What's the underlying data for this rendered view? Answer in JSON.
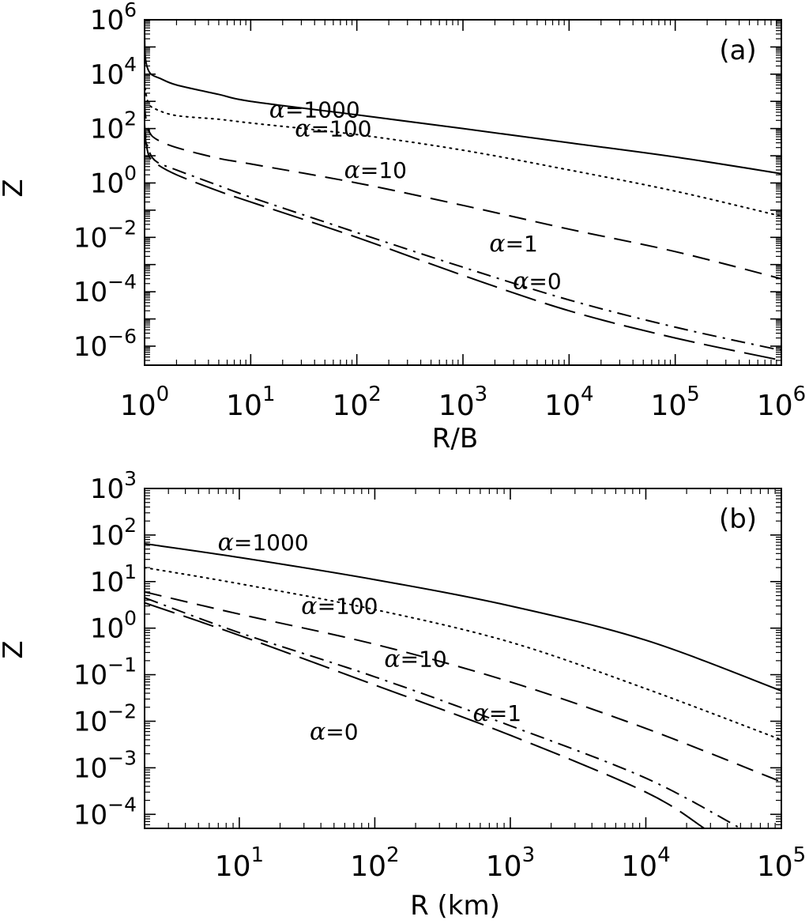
{
  "chart_data": [
    {
      "type": "line",
      "panel_label": "(a)",
      "xlabel": "R/B",
      "ylabel": "Z",
      "x_scale": "log",
      "y_scale": "log",
      "xlim": [
        1,
        1000000
      ],
      "ylim": [
        2e-07,
        1000000
      ],
      "x_ticks": [
        {
          "value": 1,
          "base": "10",
          "exp": "0"
        },
        {
          "value": 10,
          "base": "10",
          "exp": "1"
        },
        {
          "value": 100,
          "base": "10",
          "exp": "2"
        },
        {
          "value": 1000,
          "base": "10",
          "exp": "3"
        },
        {
          "value": 10000,
          "base": "10",
          "exp": "4"
        },
        {
          "value": 100000,
          "base": "10",
          "exp": "5"
        },
        {
          "value": 1000000,
          "base": "10",
          "exp": "6"
        }
      ],
      "y_ticks": [
        {
          "value": 1e-06,
          "base": "10",
          "exp": "−6"
        },
        {
          "value": 0.0001,
          "base": "10",
          "exp": "−4"
        },
        {
          "value": 0.01,
          "base": "10",
          "exp": "−2"
        },
        {
          "value": 1,
          "base": "10",
          "exp": "0"
        },
        {
          "value": 100,
          "base": "10",
          "exp": "2"
        },
        {
          "value": 10000,
          "base": "10",
          "exp": "4"
        },
        {
          "value": 1000000,
          "base": "10",
          "exp": "6"
        }
      ],
      "grid": false,
      "series": [
        {
          "name": "α=1000",
          "style": "solid",
          "x": [
            1,
            1.01,
            1.05,
            1.15,
            1.4,
            2,
            5,
            10,
            100,
            1000,
            10000,
            100000,
            1000000
          ],
          "y": [
            600000,
            60000,
            20000,
            10000,
            7000,
            4000,
            1800,
            1000,
            320,
            100,
            30,
            9,
            2.2
          ]
        },
        {
          "name": "α=100",
          "style": "dotted",
          "x": [
            1,
            1.02,
            1.1,
            1.3,
            2,
            5,
            10,
            100,
            1000,
            10000,
            100000,
            1000000
          ],
          "y": [
            9000,
            2500,
            800,
            500,
            300,
            220,
            160,
            60,
            16,
            3,
            0.5,
            0.06
          ]
        },
        {
          "name": "α=10",
          "style": "dashed",
          "x": [
            1,
            1.02,
            1.1,
            1.3,
            2,
            5,
            10,
            100,
            1000,
            10000,
            100000,
            1000000
          ],
          "y": [
            1000,
            300,
            80,
            40,
            20,
            8,
            5,
            1,
            0.15,
            0.02,
            0.003,
            0.0003
          ]
        },
        {
          "name": "α=1",
          "style": "dashdot",
          "x": [
            1,
            1.02,
            1.1,
            1.3,
            2,
            5,
            10,
            100,
            1000,
            10000,
            100000,
            1000000
          ],
          "y": [
            150,
            60,
            15,
            6,
            3,
            0.8,
            0.3,
            0.015,
            0.0008,
            5e-05,
            5e-06,
            7e-07
          ]
        },
        {
          "name": "α=0",
          "style": "longdash",
          "x": [
            1,
            1.02,
            1.1,
            1.3,
            2,
            5,
            10,
            100,
            1000,
            10000,
            100000,
            1000000
          ],
          "y": [
            100,
            40,
            10,
            5,
            2,
            0.5,
            0.2,
            0.01,
            0.0004,
            2e-05,
            2e-06,
            3e-07
          ]
        }
      ],
      "annotations": [
        {
          "text": "α=1000",
          "x": 40,
          "y": 500
        },
        {
          "text": "α=100",
          "x": 60,
          "y": 100
        },
        {
          "text": "α=10",
          "x": 150,
          "y": 3
        },
        {
          "text": "α=1",
          "x": 3000,
          "y": 0.006
        },
        {
          "text": "α=0",
          "x": 5000,
          "y": 0.00025
        }
      ]
    },
    {
      "type": "line",
      "panel_label": "(b)",
      "xlabel": "R (km)",
      "ylabel": "Z",
      "x_scale": "log",
      "y_scale": "log",
      "xlim": [
        2,
        100000
      ],
      "ylim": [
        5e-05,
        1000
      ],
      "x_ticks": [
        {
          "value": 10,
          "base": "10",
          "exp": "1"
        },
        {
          "value": 100,
          "base": "10",
          "exp": "2"
        },
        {
          "value": 1000,
          "base": "10",
          "exp": "3"
        },
        {
          "value": 10000,
          "base": "10",
          "exp": "4"
        },
        {
          "value": 100000,
          "base": "10",
          "exp": "5"
        }
      ],
      "y_ticks": [
        {
          "value": 0.0001,
          "base": "10",
          "exp": "−4"
        },
        {
          "value": 0.001,
          "base": "10",
          "exp": "−3"
        },
        {
          "value": 0.01,
          "base": "10",
          "exp": "−2"
        },
        {
          "value": 0.1,
          "base": "10",
          "exp": "−1"
        },
        {
          "value": 1,
          "base": "10",
          "exp": "0"
        },
        {
          "value": 10,
          "base": "10",
          "exp": "1"
        },
        {
          "value": 100,
          "base": "10",
          "exp": "2"
        },
        {
          "value": 1000,
          "base": "10",
          "exp": "3"
        }
      ],
      "grid": false,
      "series": [
        {
          "name": "α=1000",
          "style": "solid",
          "x": [
            2,
            10,
            100,
            1000,
            10000,
            100000
          ],
          "y": [
            65,
            33,
            11,
            3,
            0.55,
            0.045
          ]
        },
        {
          "name": "α=100",
          "style": "dotted",
          "x": [
            2,
            10,
            100,
            1000,
            10000,
            100000
          ],
          "y": [
            20,
            9,
            2.5,
            0.5,
            0.05,
            0.004
          ]
        },
        {
          "name": "α=10",
          "style": "dashed",
          "x": [
            2,
            10,
            100,
            1000,
            10000,
            100000
          ],
          "y": [
            6,
            2,
            0.45,
            0.07,
            0.007,
            0.0005
          ]
        },
        {
          "name": "α=1",
          "style": "dashdot",
          "x": [
            2,
            10,
            100,
            1000,
            10000,
            50000
          ],
          "y": [
            4.5,
            0.8,
            0.09,
            0.008,
            0.0006,
            5e-05
          ]
        },
        {
          "name": "α=0",
          "style": "longdash",
          "x": [
            2,
            10,
            100,
            1000,
            10000,
            27000
          ],
          "y": [
            3.5,
            0.7,
            0.06,
            0.005,
            0.0003,
            5e-05
          ]
        }
      ],
      "annotations": [
        {
          "text": "α=1000",
          "x": 15,
          "y": 70
        },
        {
          "text": "α=100",
          "x": 55,
          "y": 3
        },
        {
          "text": "α=10",
          "x": 200,
          "y": 0.22
        },
        {
          "text": "α=1",
          "x": 800,
          "y": 0.015
        },
        {
          "text": "α=0",
          "x": 50,
          "y": 0.006
        }
      ]
    }
  ]
}
